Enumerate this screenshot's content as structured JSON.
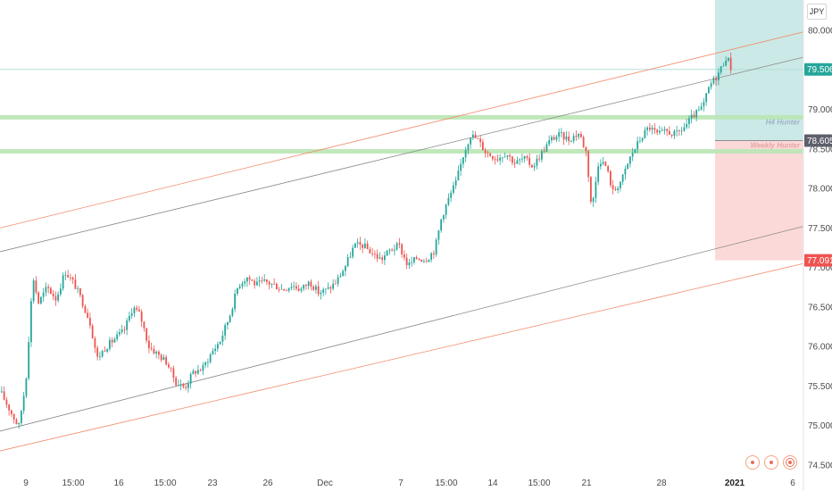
{
  "currency": "JPY",
  "colors": {
    "up": "#26a69a",
    "down": "#ef5350",
    "channel_red": "#f28b6b",
    "channel_grey": "#888888",
    "zone_green": "#b9e6b4",
    "horizontal_line": "#b2dfdb",
    "target_zone": "#cbe9e6",
    "stop_zone": "#fcd9d9",
    "tag_teal": "#26a69a",
    "tag_grey": "#5d606b",
    "tag_red": "#ef5350"
  },
  "zones": {
    "h4_label": "H4 Hunter",
    "weekly_label": "Weekly Hunter"
  },
  "price_tags": {
    "current": "79.506",
    "entry": "78.605",
    "stop": "77.091"
  },
  "nav_icons": [
    "target-icon",
    "target-icon",
    "ring-target-icon"
  ],
  "chart_data": {
    "type": "candlestick",
    "ylim": [
      74.5,
      80.0
    ],
    "y_ticks": [
      "80.000",
      "79.500",
      "79.000",
      "78.500",
      "78.000",
      "77.500",
      "77.000",
      "76.500",
      "76.000",
      "75.500",
      "75.000",
      "74.500"
    ],
    "x_ticks": [
      "9",
      "15:00",
      "16",
      "15:00",
      "23",
      "26",
      "Dec",
      "7",
      "15:00",
      "14",
      "15:00",
      "21",
      "28",
      "2021",
      "6"
    ],
    "horizontal_levels": {
      "h4_zone": 78.9,
      "weekly_zone": 78.47,
      "current_line": 79.506,
      "entry": 78.605,
      "stop": 77.091
    },
    "path": [
      [
        0,
        75.42
      ],
      [
        10,
        75.2
      ],
      [
        20,
        74.98
      ],
      [
        28,
        75.55
      ],
      [
        36,
        76.9
      ],
      [
        42,
        76.55
      ],
      [
        52,
        76.75
      ],
      [
        62,
        76.6
      ],
      [
        72,
        76.95
      ],
      [
        82,
        76.8
      ],
      [
        92,
        76.55
      ],
      [
        100,
        76.3
      ],
      [
        108,
        75.85
      ],
      [
        118,
        76.0
      ],
      [
        128,
        76.1
      ],
      [
        138,
        76.2
      ],
      [
        148,
        76.5
      ],
      [
        156,
        76.4
      ],
      [
        166,
        76.0
      ],
      [
        176,
        75.9
      ],
      [
        186,
        75.8
      ],
      [
        196,
        75.55
      ],
      [
        206,
        75.48
      ],
      [
        216,
        75.68
      ],
      [
        226,
        75.72
      ],
      [
        236,
        75.92
      ],
      [
        246,
        76.08
      ],
      [
        256,
        76.38
      ],
      [
        266,
        76.78
      ],
      [
        276,
        76.88
      ],
      [
        286,
        76.78
      ],
      [
        296,
        76.82
      ],
      [
        306,
        76.78
      ],
      [
        316,
        76.72
      ],
      [
        326,
        76.78
      ],
      [
        336,
        76.72
      ],
      [
        346,
        76.82
      ],
      [
        356,
        76.68
      ],
      [
        366,
        76.72
      ],
      [
        376,
        76.82
      ],
      [
        386,
        77.02
      ],
      [
        396,
        77.28
      ],
      [
        406,
        77.28
      ],
      [
        416,
        77.18
      ],
      [
        426,
        77.1
      ],
      [
        436,
        77.22
      ],
      [
        446,
        77.28
      ],
      [
        456,
        77.02
      ],
      [
        466,
        77.12
      ],
      [
        476,
        77.1
      ],
      [
        486,
        77.22
      ],
      [
        494,
        77.65
      ],
      [
        502,
        77.88
      ],
      [
        510,
        78.08
      ],
      [
        518,
        78.42
      ],
      [
        526,
        78.68
      ],
      [
        534,
        78.62
      ],
      [
        544,
        78.45
      ],
      [
        556,
        78.38
      ],
      [
        566,
        78.45
      ],
      [
        576,
        78.32
      ],
      [
        586,
        78.38
      ],
      [
        596,
        78.28
      ],
      [
        606,
        78.45
      ],
      [
        616,
        78.62
      ],
      [
        626,
        78.68
      ],
      [
        636,
        78.62
      ],
      [
        648,
        78.7
      ],
      [
        656,
        78.45
      ],
      [
        662,
        77.72
      ],
      [
        670,
        78.38
      ],
      [
        678,
        78.28
      ],
      [
        686,
        77.95
      ],
      [
        696,
        78.12
      ],
      [
        706,
        78.42
      ],
      [
        716,
        78.62
      ],
      [
        726,
        78.78
      ],
      [
        736,
        78.68
      ],
      [
        746,
        78.72
      ],
      [
        756,
        78.68
      ],
      [
        766,
        78.78
      ],
      [
        776,
        78.92
      ],
      [
        786,
        79.02
      ],
      [
        794,
        79.3
      ],
      [
        802,
        79.42
      ],
      [
        808,
        79.55
      ],
      [
        813,
        79.68
      ],
      [
        818,
        79.52
      ]
    ],
    "channel_red_upper": [
      [
        0,
        77.5
      ],
      [
        900,
        79.98
      ]
    ],
    "channel_red_lower": [
      [
        0,
        74.68
      ],
      [
        900,
        77.05
      ]
    ],
    "channel_grey_upper": [
      [
        0,
        77.2
      ],
      [
        900,
        79.66
      ]
    ],
    "channel_grey_lower": [
      [
        0,
        74.93
      ],
      [
        900,
        77.52
      ]
    ]
  }
}
